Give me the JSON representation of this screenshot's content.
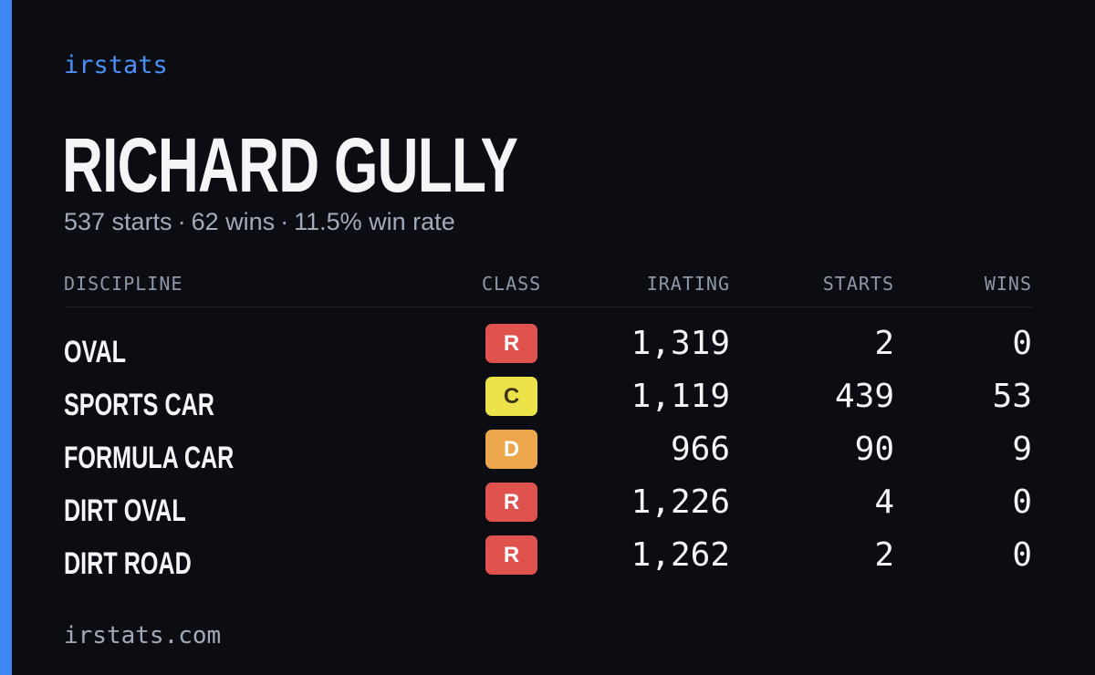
{
  "brand": "irstats",
  "driver": {
    "name": "RICHARD GULLY",
    "summary": {
      "starts": "537 starts",
      "wins": "62 wins",
      "win_rate": "11.5% win rate",
      "separator": "·"
    }
  },
  "table": {
    "headers": {
      "discipline": "DISCIPLINE",
      "class": "CLASS",
      "irating": "IRATING",
      "starts": "STARTS",
      "wins": "WINS"
    },
    "rows": [
      {
        "discipline": "OVAL",
        "class": "R",
        "class_color": "#e0524d",
        "class_text_color": "#ffffff",
        "irating": "1,319",
        "starts": "2",
        "wins": "0"
      },
      {
        "discipline": "SPORTS CAR",
        "class": "C",
        "class_color": "#ece34a",
        "class_text_color": "#3a3414",
        "irating": "1,119",
        "starts": "439",
        "wins": "53"
      },
      {
        "discipline": "FORMULA CAR",
        "class": "D",
        "class_color": "#eca64c",
        "class_text_color": "#ffffff",
        "irating": "966",
        "starts": "90",
        "wins": "9"
      },
      {
        "discipline": "DIRT OVAL",
        "class": "R",
        "class_color": "#e0524d",
        "class_text_color": "#ffffff",
        "irating": "1,226",
        "starts": "4",
        "wins": "0"
      },
      {
        "discipline": "DIRT ROAD",
        "class": "R",
        "class_color": "#e0524d",
        "class_text_color": "#ffffff",
        "irating": "1,262",
        "starts": "2",
        "wins": "0"
      }
    ]
  },
  "footer": "irstats.com",
  "colors": {
    "accent": "#3f87f5",
    "background": "#0b0d13",
    "text": "#f4f5f7",
    "muted": "#a3abba"
  }
}
